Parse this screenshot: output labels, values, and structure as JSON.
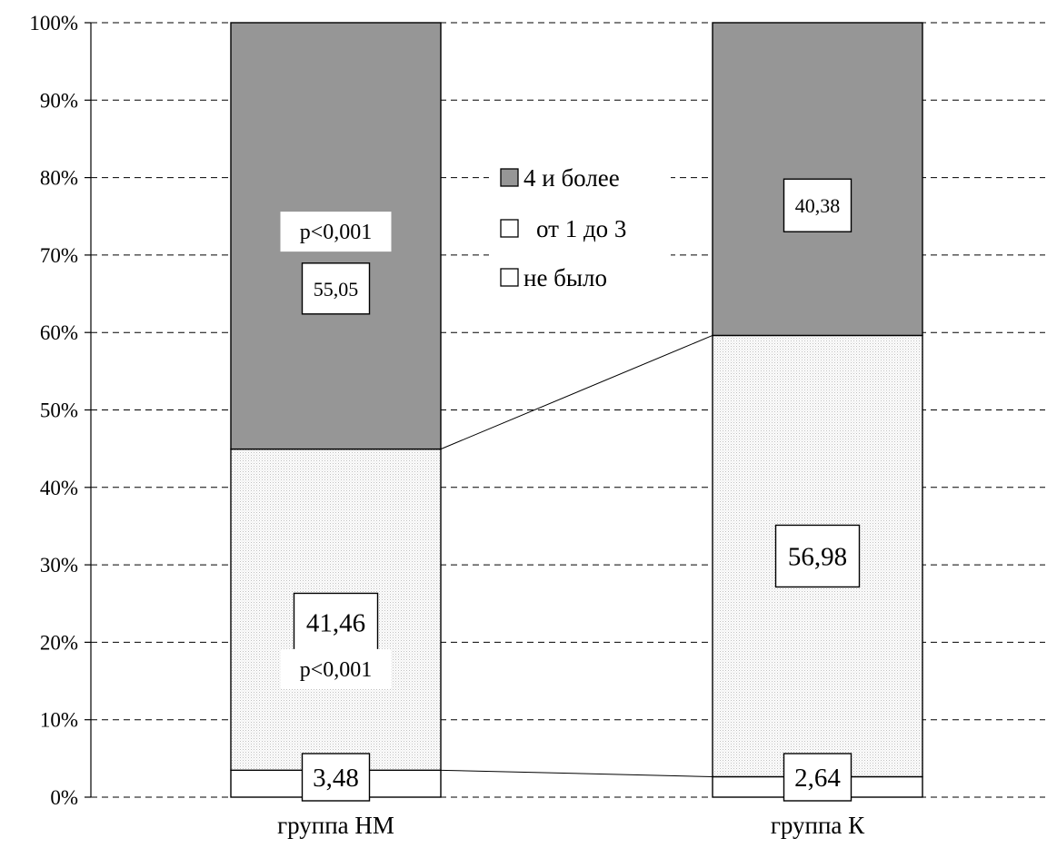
{
  "chart_data": {
    "type": "bar",
    "stacked": "percent",
    "categories": [
      "группа НМ",
      "группа К"
    ],
    "series": [
      {
        "name": "не было",
        "values": [
          3.48,
          2.64
        ],
        "color": "#ffffff"
      },
      {
        "name": "от 1 до 3",
        "values": [
          41.46,
          56.98
        ],
        "color": "#f3f3f3"
      },
      {
        "name": "4 и более",
        "values": [
          55.05,
          40.38
        ],
        "color": "#969696"
      }
    ],
    "data_labels": [
      {
        "category": 0,
        "series": 0,
        "text": "3,48"
      },
      {
        "category": 0,
        "series": 1,
        "text": "41,46"
      },
      {
        "category": 0,
        "series": 2,
        "text": "55,05"
      },
      {
        "category": 1,
        "series": 0,
        "text": "2,64"
      },
      {
        "category": 1,
        "series": 1,
        "text": "56,98"
      },
      {
        "category": 1,
        "series": 2,
        "text": "40,38"
      }
    ],
    "annotations": [
      {
        "category": 0,
        "series": 1,
        "text": "p<0,001"
      },
      {
        "category": 0,
        "series": 2,
        "text": "p<0,001"
      }
    ],
    "ylim": [
      0,
      100
    ],
    "yticks": [
      "0%",
      "10%",
      "20%",
      "30%",
      "40%",
      "50%",
      "60%",
      "70%",
      "80%",
      "90%",
      "100%"
    ],
    "grid": true,
    "legend": {
      "position": "center",
      "order": [
        "4 и более",
        "от 1 до 3",
        "не было"
      ]
    }
  }
}
